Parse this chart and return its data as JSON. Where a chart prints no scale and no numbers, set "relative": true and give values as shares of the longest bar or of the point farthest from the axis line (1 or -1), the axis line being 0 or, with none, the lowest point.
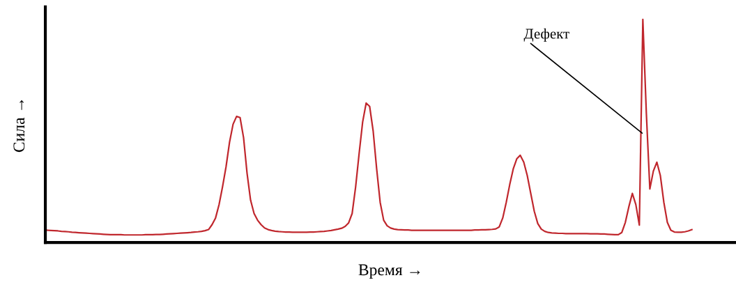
{
  "chart_data": {
    "type": "line",
    "relative": true,
    "xlabel": "Время →",
    "ylabel": "Сила →",
    "annotations": [
      "Дефект"
    ],
    "tick_labels": false,
    "grid": false,
    "legend": false,
    "categories": [
      null,
      null,
      null,
      null,
      null,
      null,
      null,
      null,
      null,
      null,
      null,
      null,
      null,
      null,
      null,
      null,
      null,
      null,
      null,
      null,
      null,
      null,
      null,
      null,
      null,
      null,
      null,
      null,
      null,
      null,
      null,
      null,
      null,
      null,
      null,
      null,
      null,
      null,
      null,
      null,
      null,
      null,
      null,
      null,
      null,
      null,
      null,
      null,
      null,
      null,
      null,
      null,
      null,
      null,
      null,
      null,
      null,
      null,
      null,
      null,
      null,
      null,
      null,
      null,
      null,
      null,
      null,
      null,
      null,
      null,
      null,
      null,
      null,
      null,
      null,
      null,
      null,
      null,
      null,
      null,
      null,
      null,
      null,
      null,
      null,
      null,
      null,
      null,
      null,
      null,
      null,
      null,
      null,
      null,
      null,
      null,
      null,
      null,
      null,
      null,
      null,
      null,
      null,
      null,
      null,
      null,
      null,
      null,
      null,
      null,
      null,
      null,
      null,
      null,
      null,
      null,
      null,
      null,
      null,
      null,
      null,
      null,
      null,
      null,
      null,
      null,
      null,
      null,
      null,
      null,
      null,
      null,
      null,
      null,
      null,
      null,
      null,
      null,
      null,
      null,
      null,
      null,
      null,
      null,
      null,
      null,
      null,
      null,
      null,
      null,
      null,
      null,
      null,
      null,
      null,
      null,
      null,
      null,
      null,
      null,
      null,
      null,
      null,
      null,
      null,
      null,
      null,
      null,
      null,
      null,
      null,
      null,
      null,
      null,
      null,
      null,
      null,
      null,
      null,
      null,
      null,
      null,
      null,
      null,
      null
    ],
    "series": [
      {
        "color": "#c0272d",
        "values": [
          0.055,
          0.054,
          0.053,
          0.052,
          0.05,
          0.049,
          0.048,
          0.046,
          0.045,
          0.044,
          0.043,
          0.042,
          0.041,
          0.04,
          0.039,
          0.038,
          0.037,
          0.036,
          0.035,
          0.035,
          0.035,
          0.035,
          0.034,
          0.034,
          0.034,
          0.034,
          0.034,
          0.034,
          0.035,
          0.035,
          0.035,
          0.036,
          0.036,
          0.037,
          0.038,
          0.039,
          0.04,
          0.041,
          0.042,
          0.043,
          0.044,
          0.045,
          0.047,
          0.048,
          0.05,
          0.053,
          0.058,
          0.08,
          0.11,
          0.17,
          0.25,
          0.34,
          0.45,
          0.53,
          0.565,
          0.56,
          0.47,
          0.31,
          0.19,
          0.13,
          0.1,
          0.08,
          0.065,
          0.058,
          0.054,
          0.051,
          0.049,
          0.048,
          0.047,
          0.047,
          0.046,
          0.046,
          0.046,
          0.046,
          0.046,
          0.047,
          0.047,
          0.048,
          0.049,
          0.05,
          0.052,
          0.054,
          0.057,
          0.06,
          0.064,
          0.072,
          0.088,
          0.13,
          0.25,
          0.4,
          0.54,
          0.625,
          0.61,
          0.5,
          0.33,
          0.18,
          0.1,
          0.075,
          0.065,
          0.06,
          0.058,
          0.057,
          0.056,
          0.056,
          0.055,
          0.055,
          0.055,
          0.055,
          0.055,
          0.055,
          0.055,
          0.055,
          0.055,
          0.055,
          0.055,
          0.055,
          0.055,
          0.055,
          0.055,
          0.055,
          0.055,
          0.055,
          0.056,
          0.056,
          0.057,
          0.057,
          0.058,
          0.059,
          0.061,
          0.07,
          0.11,
          0.18,
          0.26,
          0.33,
          0.375,
          0.391,
          0.36,
          0.3,
          0.22,
          0.14,
          0.085,
          0.06,
          0.05,
          0.045,
          0.043,
          0.042,
          0.041,
          0.041,
          0.04,
          0.04,
          0.04,
          0.04,
          0.04,
          0.04,
          0.04,
          0.039,
          0.039,
          0.039,
          0.038,
          0.038,
          0.037,
          0.036,
          0.035,
          0.035,
          0.045,
          0.09,
          0.16,
          0.22,
          0.17,
          0.078,
          1.0,
          0.58,
          0.24,
          0.32,
          0.36,
          0.3,
          0.18,
          0.09,
          0.055,
          0.047,
          0.046,
          0.046,
          0.048,
          0.052,
          0.058
        ]
      }
    ]
  }
}
